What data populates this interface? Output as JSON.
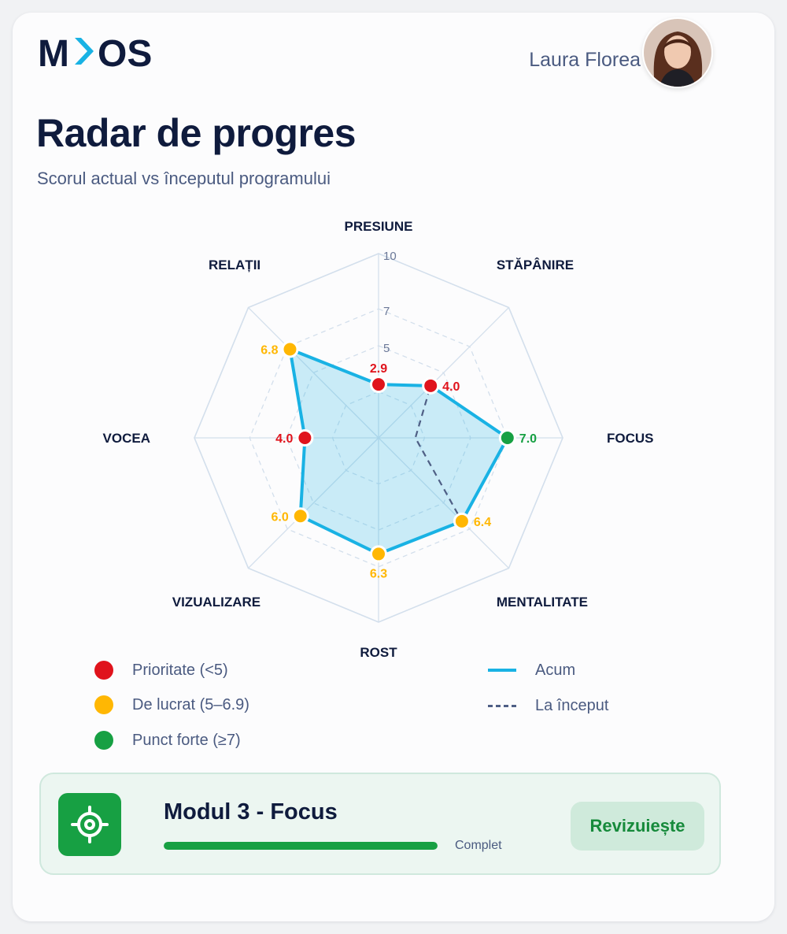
{
  "header": {
    "logo_text": "MYOS",
    "user_name": "Laura Florea",
    "avatar": "avatar-photo"
  },
  "page": {
    "title": "Radar de progres",
    "subtitle": "Scorul actual vs începutul programului"
  },
  "colors": {
    "priority": "#e0131c",
    "work": "#ffb703",
    "strength": "#17a043",
    "now_line": "#19b2e4",
    "start_line": "#4f5f85",
    "grid": "#d3dfec"
  },
  "chart_data": {
    "type": "radar",
    "title": "",
    "axes": [
      "PRESIUNE",
      "STĂPÂNIRE",
      "FOCUS",
      "MENTALITATE",
      "ROST",
      "VIZUALIZARE",
      "VOCEA",
      "RELAȚII"
    ],
    "range": [
      0,
      10
    ],
    "rings": [
      5,
      7,
      10
    ],
    "ring_labels": [
      "5",
      "7",
      "10"
    ],
    "series": [
      {
        "name": "Acum",
        "values": [
          2.9,
          4.0,
          7.0,
          6.4,
          6.3,
          6.0,
          4.0,
          6.8
        ],
        "value_labels": [
          "2.9",
          "4.0",
          "7.0",
          "6.4",
          "6.3",
          "6.0",
          "4.0",
          "6.8"
        ]
      },
      {
        "name": "La început",
        "values": [
          2.9,
          4.0,
          2.0,
          6.4,
          6.3,
          6.0,
          4.0,
          6.8
        ]
      }
    ],
    "thresholds": {
      "priority_below": 5,
      "strength_from": 7
    },
    "grid": true,
    "legend_position": "bottom"
  },
  "legend": {
    "categories": [
      {
        "label": "Prioritate (<5)",
        "color": "#e0131c"
      },
      {
        "label": "De lucrat (5–6.9)",
        "color": "#ffb703"
      },
      {
        "label": "Punct forte (≥7)",
        "color": "#17a043"
      }
    ],
    "lines": [
      {
        "label": "Acum",
        "style": "solid"
      },
      {
        "label": "La început",
        "style": "dashed"
      }
    ]
  },
  "module": {
    "icon": "target-icon",
    "title": "Modul 3 - Focus",
    "progress": 1.0,
    "status": "Complet",
    "button_label": "Revizuiește"
  }
}
